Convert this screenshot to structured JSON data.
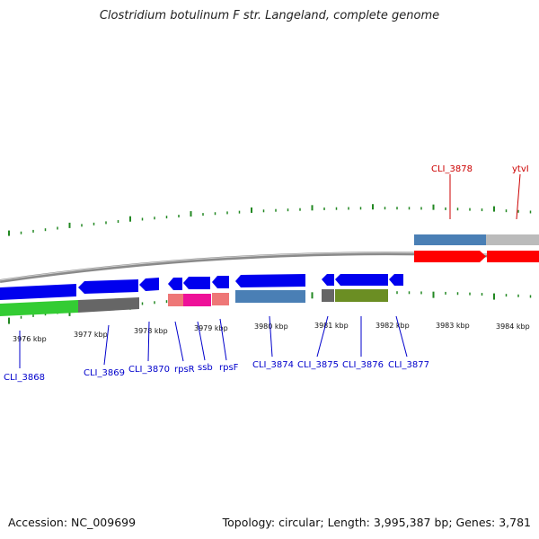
{
  "title": "Clostridium botulinum F str. Langeland, complete genome",
  "footer": {
    "accession": "Accession: NC_009699",
    "topology": "Topology: circular; Length: 3,995,387 bp; Genes: 3,781"
  },
  "colors": {
    "cds_forward": "#ff0000",
    "cds_reverse": "#0000ee",
    "gene_blue": "#4a7fb5",
    "gene_gray": "#666666",
    "gene_green": "#33cc33",
    "gene_olive": "#6b8e23",
    "gene_pink": "#ee7777",
    "gene_magenta": "#ee1199",
    "gene_lightgray": "#bbbbbb",
    "tick_mark": "#228822",
    "backbone": "#888888",
    "label_reverse": "#0000cc",
    "label_forward": "#cc0000"
  },
  "ticks": [
    "3976 kbp",
    "3977 kbp",
    "3978 kbp",
    "3979 kbp",
    "3980 kbp",
    "3981 kbp",
    "3982 kbp",
    "3983 kbp",
    "3984 kbp"
  ],
  "genes": [
    {
      "label": "CLI_3868",
      "strand": "reverse"
    },
    {
      "label": "CLI_3869",
      "strand": "reverse"
    },
    {
      "label": "CLI_3870",
      "strand": "reverse"
    },
    {
      "label": "rpsR",
      "strand": "reverse"
    },
    {
      "label": "ssb",
      "strand": "reverse"
    },
    {
      "label": "rpsF",
      "strand": "reverse"
    },
    {
      "label": "CLI_3874",
      "strand": "reverse"
    },
    {
      "label": "CLI_3875",
      "strand": "reverse"
    },
    {
      "label": "CLI_3876",
      "strand": "reverse"
    },
    {
      "label": "CLI_3877",
      "strand": "reverse"
    },
    {
      "label": "CLI_3878",
      "strand": "forward"
    },
    {
      "label": "ytvI",
      "strand": "forward"
    }
  ]
}
